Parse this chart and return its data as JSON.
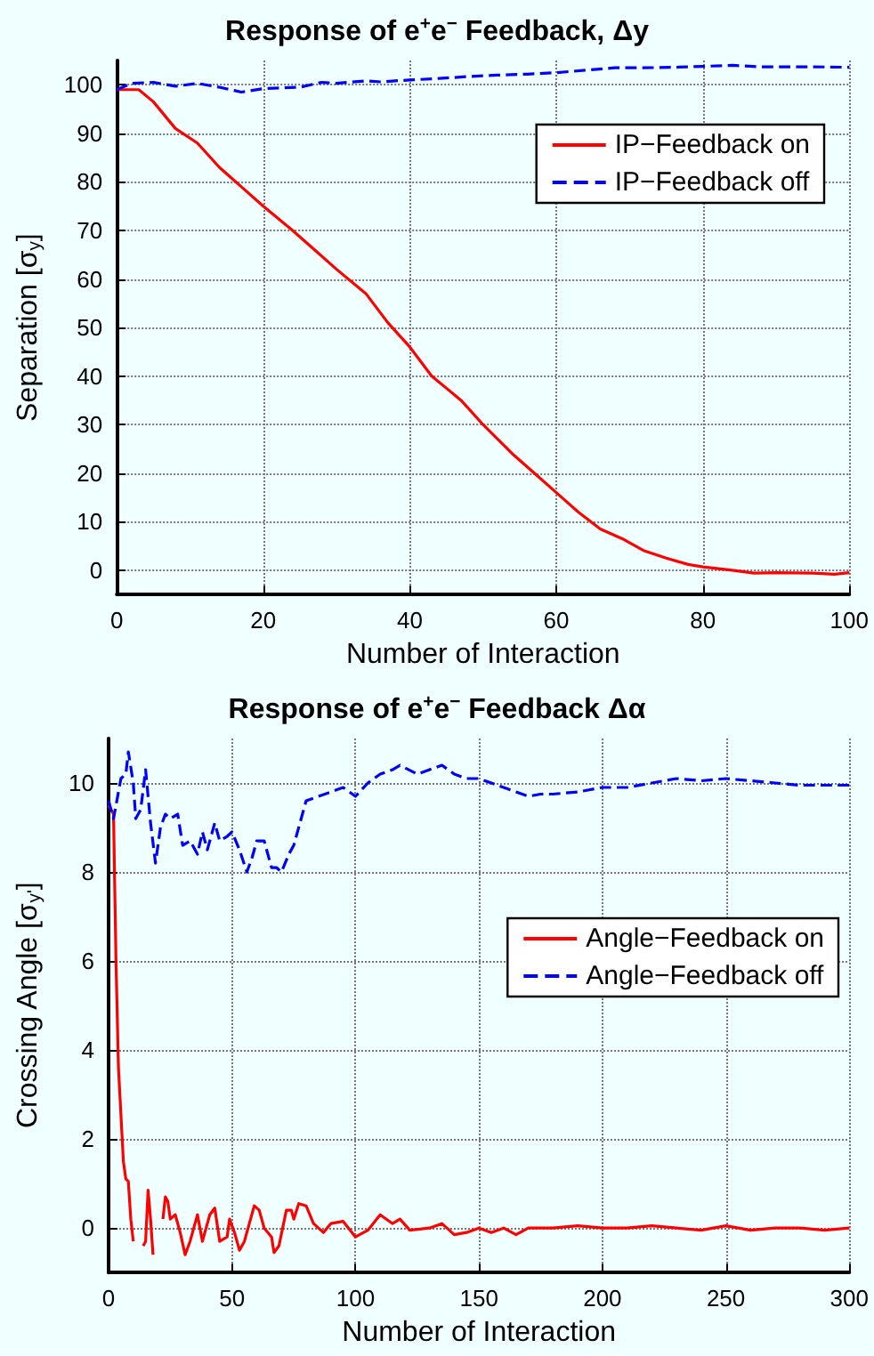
{
  "chart_data": [
    {
      "type": "line",
      "title": "Response of e$^{+}$e$^{−}$ Feedback, Δy",
      "xlabel": "Number of Interaction",
      "ylabel": "Separation [σ$_{y}$]",
      "xlim": [
        0,
        100
      ],
      "xticks": [
        0,
        20,
        40,
        60,
        80,
        100
      ],
      "ylim": [
        -5,
        105
      ],
      "yticks": [
        0,
        10,
        20,
        30,
        40,
        50,
        60,
        70,
        80,
        90,
        100
      ],
      "grid": true,
      "legend": "top right",
      "marker": "none",
      "series": [
        {
          "name": "IP−Feedback on",
          "color": "#ff0000",
          "line_style": "solid",
          "x": [
            0,
            3,
            5,
            8,
            11,
            14,
            17,
            20,
            24,
            27,
            30,
            34,
            37,
            40,
            43,
            47,
            50,
            54,
            57,
            60,
            63,
            66,
            69,
            72,
            75,
            78,
            80,
            84,
            87,
            90,
            95,
            98,
            100
          ],
          "values": [
            99,
            99,
            96.5,
            91,
            88,
            83,
            79,
            75,
            70,
            66,
            62,
            57,
            51,
            46,
            40,
            35,
            30,
            24,
            20,
            16,
            12,
            8.5,
            6.5,
            4,
            2.5,
            1.2,
            0.7,
            0,
            -0.6,
            -0.5,
            -0.6,
            -0.8,
            -0.5
          ]
        },
        {
          "name": "IP−Feedback off",
          "color": "#0000ff",
          "line_style": "dashed",
          "x": [
            0,
            2,
            5,
            8,
            11,
            14,
            17,
            20,
            25,
            28,
            30,
            34,
            36,
            40,
            44,
            48,
            52,
            56,
            60,
            64,
            68,
            72,
            76,
            80,
            84,
            88,
            95,
            100
          ],
          "values": [
            99,
            100.3,
            100.5,
            99.7,
            100.3,
            99.5,
            98.5,
            99.2,
            99.5,
            100.5,
            100.3,
            100.8,
            100.6,
            101,
            101.3,
            101.7,
            102,
            102.2,
            102.5,
            103,
            103.5,
            103.5,
            103.6,
            103.8,
            104,
            103.7,
            103.7,
            103.6
          ]
        }
      ]
    },
    {
      "type": "line",
      "title": "Response of e$^{+}$e$^{−}$ Feedback Δα",
      "xlabel": "Number of Interaction",
      "ylabel": "Crossing Angle [σ$_{y'}$]",
      "xlim": [
        0,
        300
      ],
      "xticks": [
        0,
        50,
        100,
        150,
        200,
        250,
        300
      ],
      "ylim": [
        -1,
        11
      ],
      "yticks": [
        0,
        2,
        4,
        6,
        8,
        10
      ],
      "grid": true,
      "legend": "right",
      "marker": "none",
      "series": [
        {
          "name": "Angle−Feedback on",
          "color": "#ff0000",
          "line_style": "solid",
          "x": [
            0,
            2,
            3,
            4,
            6,
            7,
            8,
            9,
            10,
            11,
            13,
            14,
            15,
            16,
            17,
            18,
            19,
            21,
            22,
            23,
            24,
            25,
            27,
            29,
            31,
            33,
            35,
            36,
            38,
            41,
            43,
            45,
            48,
            49,
            51,
            53,
            55,
            57,
            59,
            61,
            63,
            66,
            67,
            69,
            72,
            74,
            75,
            77,
            80,
            83,
            87,
            90,
            95,
            100,
            105,
            110,
            115,
            118,
            122,
            130,
            135,
            140,
            145,
            150,
            155,
            160,
            165,
            170,
            180,
            190,
            200,
            210,
            220,
            230,
            240,
            250,
            260,
            270,
            280,
            290,
            300
          ],
          "values": [
            9.5,
            9.3,
            6,
            3.6,
            1.5,
            1.1,
            1.05,
            0.2,
            -0.3,
            null,
            null,
            -0.4,
            -0.3,
            0.85,
            0.2,
            -0.6,
            null,
            null,
            0.2,
            0.7,
            0.6,
            0.2,
            0.3,
            -0.1,
            -0.6,
            -0.3,
            0.1,
            0.3,
            -0.3,
            0.3,
            0.45,
            -0.3,
            -0.2,
            0.2,
            -0.1,
            -0.5,
            -0.3,
            0.1,
            0.5,
            0.4,
            0,
            -0.2,
            -0.55,
            -0.4,
            0.4,
            0.4,
            0.2,
            0.55,
            0.5,
            0.1,
            -0.1,
            0.1,
            0.15,
            -0.2,
            -0.05,
            0.3,
            0.1,
            0.2,
            -0.05,
            0,
            0.1,
            -0.15,
            -0.1,
            0,
            -0.1,
            0,
            -0.15,
            0,
            0,
            0.05,
            0,
            0,
            0.05,
            0,
            -0.05,
            0.05,
            -0.05,
            0,
            0,
            -0.05,
            0
          ]
        },
        {
          "name": "Angle−Feedback off",
          "color": "#0000ff",
          "line_style": "dashed",
          "x": [
            0,
            2,
            5,
            7,
            8,
            10,
            11,
            13,
            15,
            17,
            19,
            21,
            23,
            25,
            28,
            30,
            33,
            36,
            38,
            40,
            43,
            45,
            48,
            50,
            53,
            56,
            58,
            60,
            63,
            66,
            68,
            70,
            73,
            75,
            78,
            80,
            85,
            90,
            95,
            100,
            105,
            110,
            115,
            118,
            125,
            130,
            135,
            140,
            145,
            150,
            155,
            160,
            165,
            170,
            175,
            180,
            190,
            200,
            210,
            220,
            230,
            240,
            250,
            260,
            270,
            280,
            290,
            300
          ],
          "values": [
            9.6,
            9.2,
            10.1,
            10.2,
            10.7,
            10,
            9.2,
            9.4,
            10.3,
            9.1,
            8.2,
            9,
            9.3,
            9.2,
            9.3,
            8.6,
            8.7,
            8.4,
            8.9,
            8.5,
            9.1,
            8.7,
            8.8,
            8.9,
            8.5,
            8,
            8.3,
            8.7,
            8.7,
            8.1,
            8.1,
            8,
            8.4,
            8.6,
            9.2,
            9.6,
            9.7,
            9.8,
            9.9,
            9.7,
            10,
            10.2,
            10.3,
            10.4,
            10.2,
            10.3,
            10.4,
            10.2,
            10.1,
            10.1,
            10,
            9.9,
            9.8,
            9.7,
            9.75,
            9.75,
            9.8,
            9.9,
            9.9,
            10,
            10.1,
            10.05,
            10.1,
            10.05,
            10,
            9.95,
            9.95,
            9.95
          ]
        }
      ]
    }
  ]
}
